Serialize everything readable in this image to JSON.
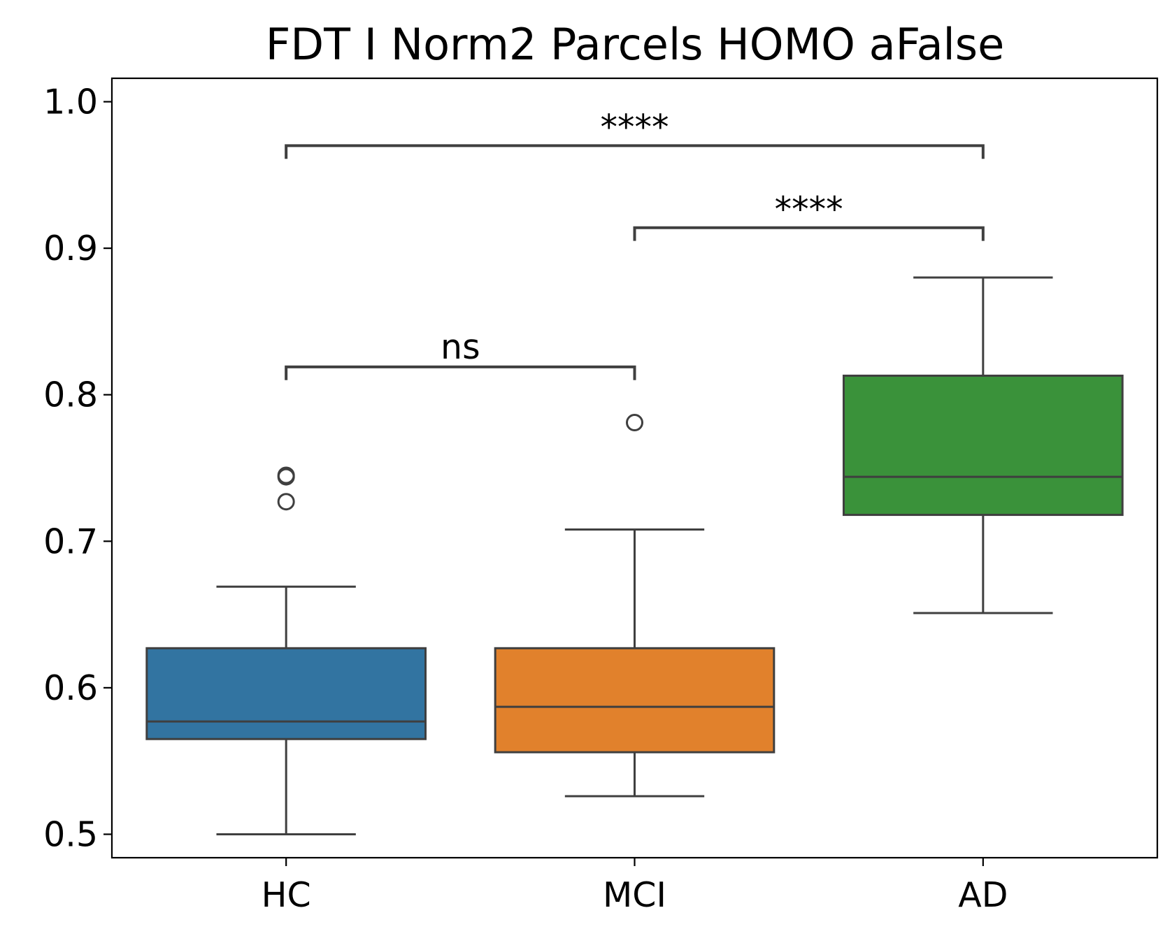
{
  "chart_data": {
    "type": "box",
    "title": "FDT I Norm2 Parcels HOMO aFalse",
    "xlabel": "",
    "ylabel": "",
    "categories": [
      "HC",
      "MCI",
      "AD"
    ],
    "ylim": [
      0.484,
      1.016
    ],
    "yticks": [
      0.5,
      0.6,
      0.7,
      0.8,
      0.9,
      1.0
    ],
    "ytick_labels": [
      "0.5",
      "0.6",
      "0.7",
      "0.8",
      "0.9",
      "1.0"
    ],
    "grid": false,
    "legend": "none",
    "boxes": [
      {
        "category": "HC",
        "whisker_low": 0.5,
        "q1": 0.565,
        "median": 0.577,
        "q3": 0.627,
        "whisker_high": 0.669,
        "outliers": [
          0.727,
          0.744,
          0.745
        ],
        "color": "#3274a1"
      },
      {
        "category": "MCI",
        "whisker_low": 0.526,
        "q1": 0.556,
        "median": 0.587,
        "q3": 0.627,
        "whisker_high": 0.708,
        "outliers": [
          0.781
        ],
        "color": "#e1812c"
      },
      {
        "category": "AD",
        "whisker_low": 0.651,
        "q1": 0.718,
        "median": 0.744,
        "q3": 0.813,
        "whisker_high": 0.88,
        "outliers": [],
        "color": "#3a923a"
      }
    ],
    "annotations": [
      {
        "from": "HC",
        "to": "MCI",
        "label": "ns",
        "y": 0.819,
        "tip_bottom": 0.81
      },
      {
        "from": "MCI",
        "to": "AD",
        "label": "****",
        "y": 0.914,
        "tip_bottom": 0.905
      },
      {
        "from": "HC",
        "to": "AD",
        "label": "****",
        "y": 0.97,
        "tip_bottom": 0.961
      }
    ],
    "colors": {
      "box_edge": "#3f3f3f",
      "bracket": "#3f3f3f",
      "axis": "#000000"
    }
  }
}
